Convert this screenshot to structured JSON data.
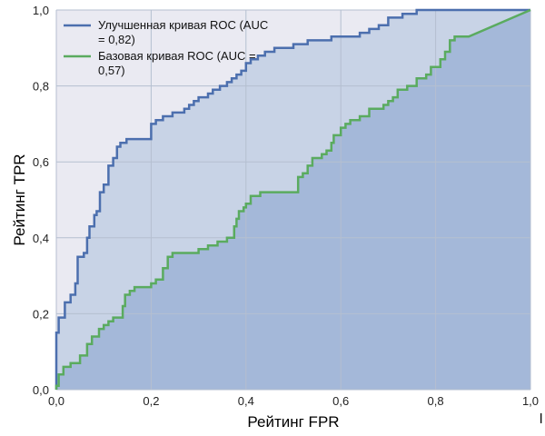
{
  "chart_data": {
    "type": "line",
    "title": "",
    "xlabel": "Рейтинг FPR",
    "ylabel": "Рейтинг TPR",
    "xlim": [
      0,
      1
    ],
    "ylim": [
      0,
      1
    ],
    "x_ticks": [
      "0,0",
      "0,2",
      "0,4",
      "0,6",
      "0,8",
      "1,0"
    ],
    "y_ticks": [
      "0,0",
      "0,2",
      "0,4",
      "0,6",
      "0,8",
      "1,0"
    ],
    "grid": true,
    "legend_position": "top-left",
    "series": [
      {
        "name": "Улучшенная кривая ROC (AUC = 0,82)",
        "color": "#4c6fae",
        "fill_color": "#c8d3e6",
        "points": [
          [
            0,
            0
          ],
          [
            0,
            0.15
          ],
          [
            0.005,
            0.15
          ],
          [
            0.005,
            0.19
          ],
          [
            0.018,
            0.19
          ],
          [
            0.018,
            0.23
          ],
          [
            0.03,
            0.23
          ],
          [
            0.03,
            0.25
          ],
          [
            0.04,
            0.25
          ],
          [
            0.04,
            0.28
          ],
          [
            0.045,
            0.28
          ],
          [
            0.045,
            0.35
          ],
          [
            0.058,
            0.35
          ],
          [
            0.058,
            0.36
          ],
          [
            0.065,
            0.36
          ],
          [
            0.065,
            0.4
          ],
          [
            0.07,
            0.4
          ],
          [
            0.07,
            0.43
          ],
          [
            0.08,
            0.43
          ],
          [
            0.08,
            0.46
          ],
          [
            0.085,
            0.46
          ],
          [
            0.085,
            0.47
          ],
          [
            0.092,
            0.47
          ],
          [
            0.092,
            0.52
          ],
          [
            0.1,
            0.52
          ],
          [
            0.1,
            0.54
          ],
          [
            0.11,
            0.54
          ],
          [
            0.11,
            0.59
          ],
          [
            0.12,
            0.59
          ],
          [
            0.12,
            0.61
          ],
          [
            0.128,
            0.61
          ],
          [
            0.128,
            0.64
          ],
          [
            0.135,
            0.64
          ],
          [
            0.135,
            0.65
          ],
          [
            0.148,
            0.65
          ],
          [
            0.148,
            0.66
          ],
          [
            0.2,
            0.66
          ],
          [
            0.2,
            0.7
          ],
          [
            0.21,
            0.7
          ],
          [
            0.21,
            0.71
          ],
          [
            0.225,
            0.71
          ],
          [
            0.225,
            0.72
          ],
          [
            0.245,
            0.72
          ],
          [
            0.245,
            0.73
          ],
          [
            0.27,
            0.73
          ],
          [
            0.27,
            0.74
          ],
          [
            0.28,
            0.74
          ],
          [
            0.28,
            0.75
          ],
          [
            0.29,
            0.75
          ],
          [
            0.29,
            0.76
          ],
          [
            0.3,
            0.76
          ],
          [
            0.3,
            0.77
          ],
          [
            0.32,
            0.77
          ],
          [
            0.32,
            0.78
          ],
          [
            0.33,
            0.78
          ],
          [
            0.33,
            0.79
          ],
          [
            0.345,
            0.79
          ],
          [
            0.345,
            0.8
          ],
          [
            0.36,
            0.8
          ],
          [
            0.36,
            0.81
          ],
          [
            0.37,
            0.81
          ],
          [
            0.37,
            0.82
          ],
          [
            0.38,
            0.82
          ],
          [
            0.38,
            0.83
          ],
          [
            0.39,
            0.83
          ],
          [
            0.39,
            0.84
          ],
          [
            0.4,
            0.84
          ],
          [
            0.4,
            0.86
          ],
          [
            0.41,
            0.86
          ],
          [
            0.41,
            0.87
          ],
          [
            0.425,
            0.87
          ],
          [
            0.425,
            0.88
          ],
          [
            0.44,
            0.88
          ],
          [
            0.44,
            0.89
          ],
          [
            0.46,
            0.89
          ],
          [
            0.46,
            0.9
          ],
          [
            0.5,
            0.9
          ],
          [
            0.5,
            0.91
          ],
          [
            0.53,
            0.91
          ],
          [
            0.53,
            0.92
          ],
          [
            0.58,
            0.92
          ],
          [
            0.58,
            0.93
          ],
          [
            0.64,
            0.93
          ],
          [
            0.64,
            0.94
          ],
          [
            0.66,
            0.94
          ],
          [
            0.66,
            0.95
          ],
          [
            0.68,
            0.95
          ],
          [
            0.68,
            0.96
          ],
          [
            0.7,
            0.96
          ],
          [
            0.7,
            0.98
          ],
          [
            0.73,
            0.98
          ],
          [
            0.73,
            0.99
          ],
          [
            0.76,
            0.99
          ],
          [
            0.76,
            1.0
          ],
          [
            1,
            1.0
          ]
        ]
      },
      {
        "name": "Базовая кривая ROC (AUC = 0,57)",
        "color": "#5aab5f",
        "fill_color": "#a4b8d9",
        "points": [
          [
            0,
            0
          ],
          [
            0,
            0.01
          ],
          [
            0.005,
            0.01
          ],
          [
            0.005,
            0.04
          ],
          [
            0.015,
            0.04
          ],
          [
            0.015,
            0.06
          ],
          [
            0.03,
            0.06
          ],
          [
            0.03,
            0.07
          ],
          [
            0.05,
            0.07
          ],
          [
            0.05,
            0.09
          ],
          [
            0.065,
            0.09
          ],
          [
            0.065,
            0.12
          ],
          [
            0.075,
            0.12
          ],
          [
            0.075,
            0.14
          ],
          [
            0.09,
            0.14
          ],
          [
            0.09,
            0.16
          ],
          [
            0.1,
            0.16
          ],
          [
            0.1,
            0.17
          ],
          [
            0.11,
            0.17
          ],
          [
            0.11,
            0.18
          ],
          [
            0.12,
            0.18
          ],
          [
            0.12,
            0.19
          ],
          [
            0.14,
            0.19
          ],
          [
            0.14,
            0.22
          ],
          [
            0.145,
            0.22
          ],
          [
            0.145,
            0.25
          ],
          [
            0.155,
            0.25
          ],
          [
            0.155,
            0.26
          ],
          [
            0.165,
            0.26
          ],
          [
            0.165,
            0.27
          ],
          [
            0.2,
            0.27
          ],
          [
            0.2,
            0.28
          ],
          [
            0.21,
            0.28
          ],
          [
            0.21,
            0.29
          ],
          [
            0.225,
            0.29
          ],
          [
            0.225,
            0.32
          ],
          [
            0.235,
            0.32
          ],
          [
            0.235,
            0.35
          ],
          [
            0.245,
            0.35
          ],
          [
            0.245,
            0.36
          ],
          [
            0.3,
            0.36
          ],
          [
            0.3,
            0.37
          ],
          [
            0.32,
            0.37
          ],
          [
            0.32,
            0.38
          ],
          [
            0.34,
            0.38
          ],
          [
            0.34,
            0.39
          ],
          [
            0.36,
            0.39
          ],
          [
            0.36,
            0.4
          ],
          [
            0.375,
            0.4
          ],
          [
            0.375,
            0.43
          ],
          [
            0.38,
            0.43
          ],
          [
            0.38,
            0.45
          ],
          [
            0.385,
            0.45
          ],
          [
            0.385,
            0.47
          ],
          [
            0.395,
            0.47
          ],
          [
            0.395,
            0.48
          ],
          [
            0.4,
            0.48
          ],
          [
            0.4,
            0.49
          ],
          [
            0.41,
            0.49
          ],
          [
            0.41,
            0.51
          ],
          [
            0.43,
            0.51
          ],
          [
            0.43,
            0.52
          ],
          [
            0.51,
            0.52
          ],
          [
            0.51,
            0.56
          ],
          [
            0.52,
            0.56
          ],
          [
            0.52,
            0.57
          ],
          [
            0.53,
            0.57
          ],
          [
            0.53,
            0.59
          ],
          [
            0.54,
            0.59
          ],
          [
            0.54,
            0.61
          ],
          [
            0.56,
            0.61
          ],
          [
            0.56,
            0.62
          ],
          [
            0.57,
            0.62
          ],
          [
            0.57,
            0.63
          ],
          [
            0.58,
            0.63
          ],
          [
            0.58,
            0.65
          ],
          [
            0.585,
            0.65
          ],
          [
            0.585,
            0.67
          ],
          [
            0.6,
            0.67
          ],
          [
            0.6,
            0.69
          ],
          [
            0.61,
            0.69
          ],
          [
            0.61,
            0.7
          ],
          [
            0.62,
            0.7
          ],
          [
            0.62,
            0.71
          ],
          [
            0.64,
            0.71
          ],
          [
            0.64,
            0.72
          ],
          [
            0.66,
            0.72
          ],
          [
            0.66,
            0.74
          ],
          [
            0.69,
            0.74
          ],
          [
            0.69,
            0.75
          ],
          [
            0.7,
            0.75
          ],
          [
            0.7,
            0.76
          ],
          [
            0.71,
            0.76
          ],
          [
            0.71,
            0.77
          ],
          [
            0.72,
            0.77
          ],
          [
            0.72,
            0.79
          ],
          [
            0.74,
            0.79
          ],
          [
            0.74,
            0.8
          ],
          [
            0.76,
            0.8
          ],
          [
            0.76,
            0.82
          ],
          [
            0.78,
            0.82
          ],
          [
            0.78,
            0.83
          ],
          [
            0.79,
            0.83
          ],
          [
            0.79,
            0.85
          ],
          [
            0.81,
            0.85
          ],
          [
            0.81,
            0.87
          ],
          [
            0.82,
            0.87
          ],
          [
            0.82,
            0.89
          ],
          [
            0.83,
            0.89
          ],
          [
            0.83,
            0.92
          ],
          [
            0.84,
            0.92
          ],
          [
            0.84,
            0.93
          ],
          [
            0.87,
            0.93
          ],
          [
            1,
            1.0
          ]
        ]
      }
    ],
    "annotations": [
      "l"
    ],
    "background_color": "#eaeaf2",
    "grid_color": "#b5bfd0"
  }
}
